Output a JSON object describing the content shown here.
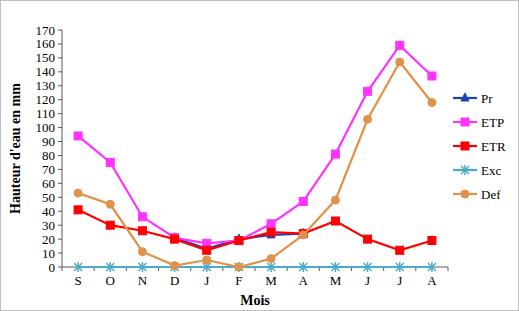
{
  "chart_data": {
    "type": "line",
    "x_label": "Mois",
    "y_label": "Hauteur d'eau en mm",
    "categories": [
      "S",
      "O",
      "N",
      "D",
      "J",
      "F",
      "M",
      "A",
      "M",
      "J",
      "J",
      "A"
    ],
    "series": [
      {
        "name": "Pr",
        "color": "#1f3fbf",
        "marker": "triangle",
        "values": [
          null,
          null,
          null,
          21,
          13,
          20,
          23,
          24,
          null,
          null,
          null,
          null
        ]
      },
      {
        "name": "ETP",
        "color": "#ff33ff",
        "marker": "square",
        "values": [
          94,
          75,
          36,
          21,
          17,
          19,
          31,
          47,
          81,
          126,
          159,
          137
        ]
      },
      {
        "name": "ETR",
        "color": "#ff0000",
        "marker": "square",
        "values": [
          41,
          30,
          26,
          20,
          12,
          19,
          25,
          24,
          33,
          20,
          12,
          19
        ]
      },
      {
        "name": "Exc",
        "color": "#4bacc6",
        "marker": "asterisk",
        "values": [
          0,
          0,
          0,
          0,
          0,
          0,
          0,
          0,
          0,
          0,
          0,
          0
        ]
      },
      {
        "name": "Def",
        "color": "#e0914a",
        "marker": "circle",
        "values": [
          53,
          45,
          11,
          1,
          5,
          0,
          6,
          23,
          48,
          106,
          147,
          118
        ]
      }
    ],
    "ylim": [
      0,
      170
    ],
    "yticks": [
      0,
      10,
      20,
      30,
      40,
      50,
      60,
      70,
      80,
      90,
      100,
      110,
      120,
      130,
      140,
      150,
      160,
      170
    ],
    "grid": false,
    "legend": "right"
  }
}
